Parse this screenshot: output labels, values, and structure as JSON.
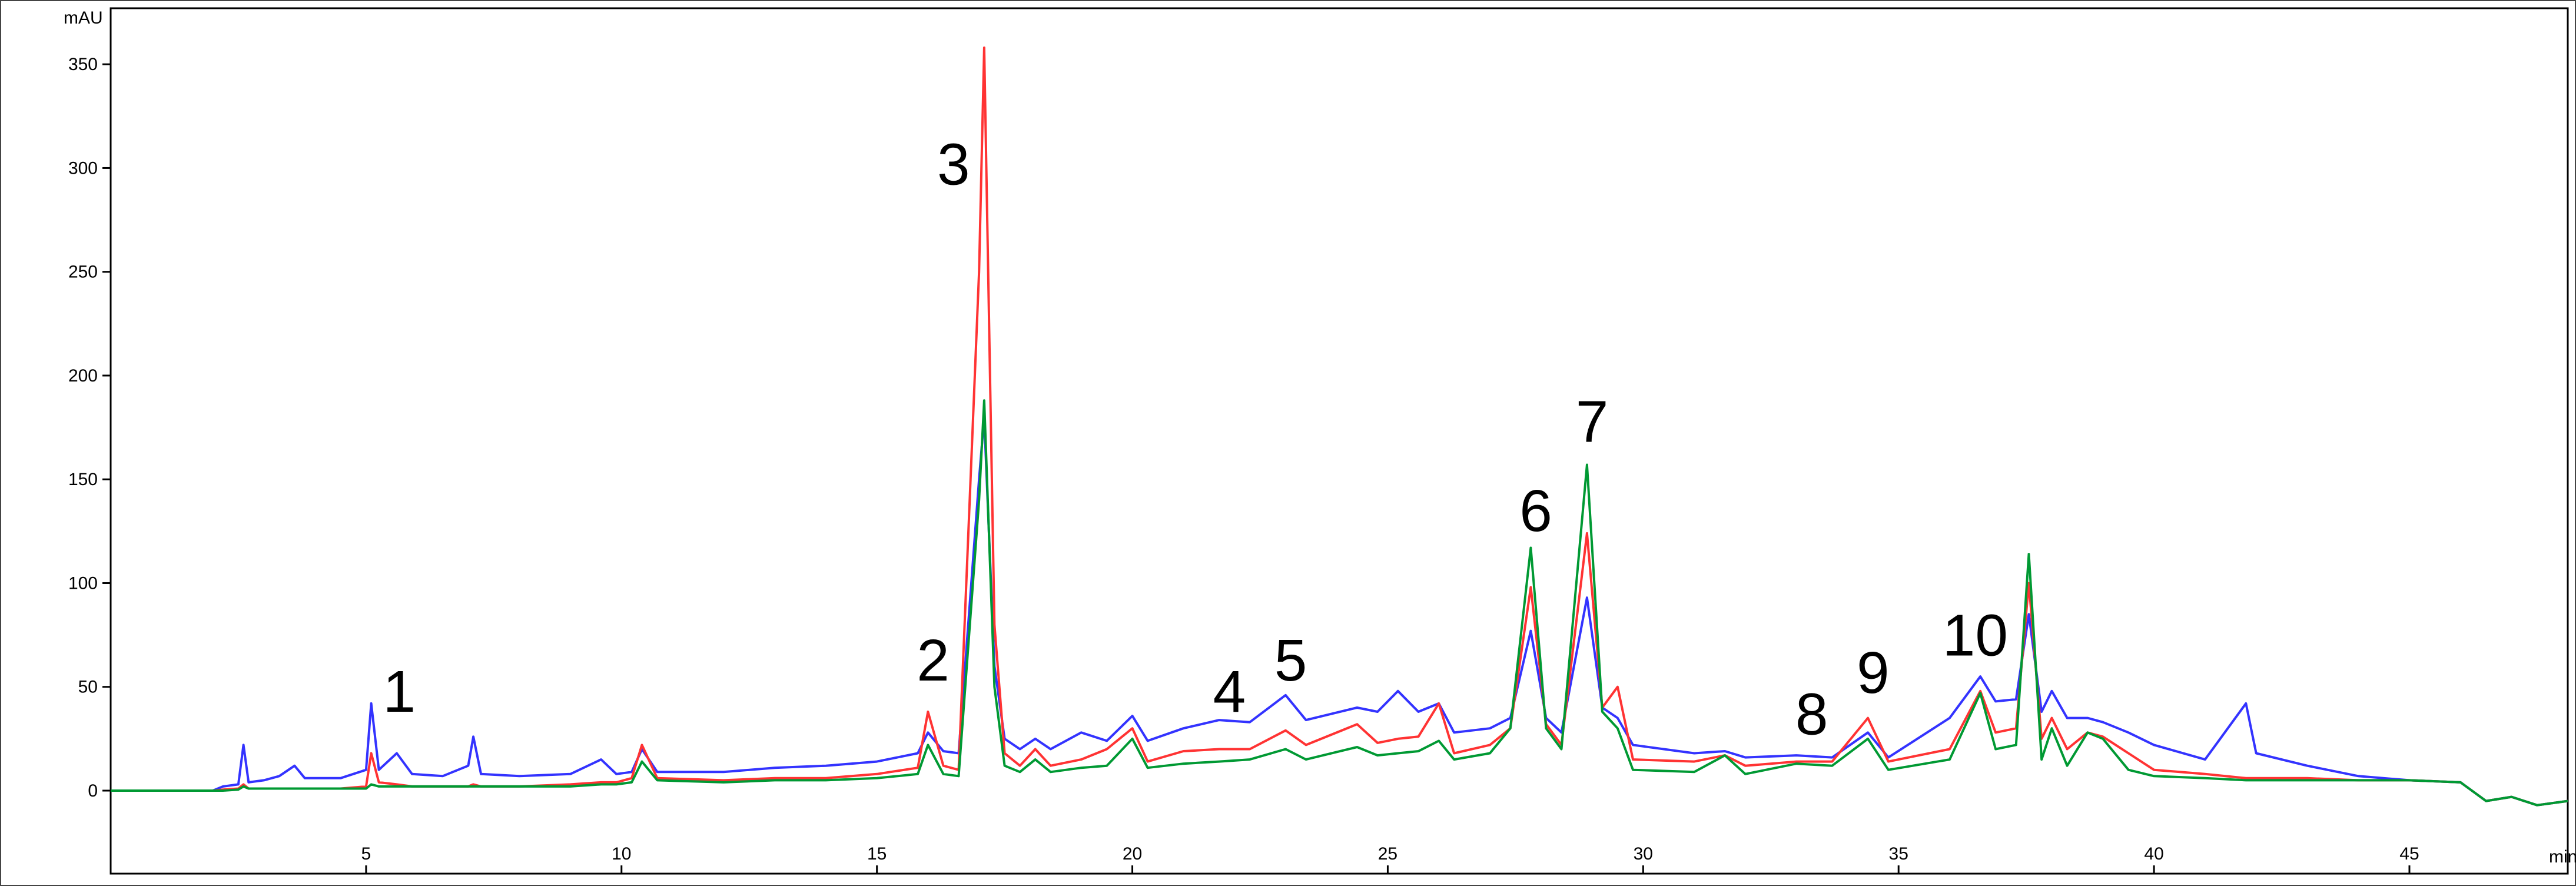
{
  "chart_data": {
    "type": "line",
    "y_label": "mAU",
    "x_label": "min",
    "xlim": [
      0,
      48.1
    ],
    "ylim": [
      -40,
      377
    ],
    "xticks": [
      5,
      10,
      15,
      20,
      25,
      30,
      35,
      40,
      45
    ],
    "yticks": [
      0,
      50,
      100,
      150,
      200,
      250,
      300,
      350
    ],
    "x": [
      0,
      2.0,
      2.2,
      2.5,
      2.6,
      2.7,
      3.0,
      3.3,
      3.6,
      3.8,
      4.5,
      5.0,
      5.1,
      5.25,
      5.6,
      5.9,
      6.5,
      7.0,
      7.1,
      7.25,
      8.0,
      9.0,
      9.6,
      9.9,
      10.2,
      10.4,
      10.7,
      12,
      13,
      14,
      15,
      15.8,
      16.0,
      16.3,
      16.6,
      17.0,
      17.1,
      17.3,
      17.5,
      17.8,
      18.1,
      18.4,
      19.0,
      19.5,
      20.0,
      20.3,
      21.0,
      21.7,
      22.3,
      23.0,
      23.4,
      24.4,
      24.8,
      25.2,
      25.6,
      26.0,
      26.3,
      27.0,
      27.4,
      27.8,
      28.1,
      28.4,
      28.9,
      29.2,
      29.5,
      29.8,
      31.0,
      31.6,
      32.0,
      33.0,
      33.7,
      34.4,
      34.8,
      36.0,
      36.6,
      36.9,
      37.3,
      37.55,
      37.8,
      38.0,
      38.3,
      38.7,
      39.0,
      39.5,
      40.0,
      41.0,
      41.8,
      42.0,
      43.0,
      44.0,
      45.0,
      46.0,
      46.5,
      47.0,
      47.5,
      48.1
    ],
    "series": [
      {
        "color": "#3333ff",
        "values": [
          0,
          0,
          2,
          3,
          22,
          4,
          5,
          7,
          12,
          6,
          6,
          10,
          42,
          10,
          18,
          8,
          7,
          12,
          26,
          8,
          7,
          8,
          15,
          8,
          9,
          20,
          9,
          9,
          11,
          12,
          14,
          18,
          28,
          19,
          18,
          150,
          180,
          60,
          25,
          20,
          25,
          20,
          28,
          24,
          36,
          24,
          30,
          34,
          33,
          46,
          34,
          40,
          38,
          48,
          38,
          42,
          28,
          30,
          35,
          77,
          35,
          28,
          93,
          40,
          35,
          22,
          18,
          19,
          16,
          17,
          16,
          28,
          16,
          35,
          55,
          43,
          44,
          85,
          38,
          48,
          35,
          35,
          33,
          28,
          22,
          15,
          42,
          18,
          12,
          7,
          5,
          4,
          -5,
          -3,
          -7,
          -5
        ]
      },
      {
        "color": "#ff3333",
        "values": [
          0,
          0,
          0.5,
          1,
          3,
          1,
          1,
          1,
          1,
          1,
          1,
          2,
          18,
          4,
          3,
          2,
          2,
          2,
          3,
          2,
          2,
          3,
          4,
          4,
          6,
          22,
          6,
          5,
          6,
          6,
          8,
          11,
          38,
          12,
          10,
          250,
          358,
          80,
          18,
          12,
          20,
          12,
          15,
          20,
          30,
          14,
          19,
          20,
          20,
          29,
          22,
          32,
          23,
          25,
          26,
          42,
          18,
          22,
          30,
          98,
          32,
          22,
          124,
          40,
          50,
          15,
          14,
          17,
          12,
          14,
          14,
          35,
          14,
          20,
          48,
          28,
          30,
          100,
          25,
          35,
          20,
          28,
          26,
          18,
          10,
          8,
          6,
          6,
          6,
          5,
          5,
          4,
          -5,
          -3,
          -7,
          -5
        ]
      },
      {
        "color": "#009933",
        "values": [
          0,
          0,
          0,
          0.5,
          2,
          1,
          1,
          1,
          1,
          1,
          1,
          1,
          3,
          2,
          2,
          2,
          2,
          2,
          2,
          2,
          2,
          2,
          3,
          3,
          4,
          14,
          5,
          4,
          5,
          5,
          6,
          8,
          22,
          8,
          7,
          140,
          188,
          50,
          12,
          9,
          15,
          9,
          11,
          12,
          25,
          11,
          13,
          14,
          15,
          20,
          15,
          21,
          17,
          18,
          19,
          24,
          15,
          18,
          30,
          117,
          30,
          20,
          157,
          38,
          30,
          10,
          9,
          17,
          8,
          13,
          12,
          25,
          10,
          15,
          47,
          20,
          22,
          114,
          15,
          30,
          12,
          28,
          25,
          10,
          7,
          6,
          5,
          5,
          5,
          5,
          5,
          4,
          -5,
          -3,
          -7,
          -5
        ]
      }
    ],
    "annotations": [
      {
        "text": "1",
        "x": 5.65,
        "y": 48
      },
      {
        "text": "2",
        "x": 16.1,
        "y": 63
      },
      {
        "text": "3",
        "x": 16.5,
        "y": 302
      },
      {
        "text": "4",
        "x": 21.9,
        "y": 48
      },
      {
        "text": "5",
        "x": 23.1,
        "y": 63
      },
      {
        "text": "6",
        "x": 27.9,
        "y": 135
      },
      {
        "text": "7",
        "x": 29.0,
        "y": 178
      },
      {
        "text": "8",
        "x": 33.3,
        "y": 37
      },
      {
        "text": "9",
        "x": 34.5,
        "y": 57
      },
      {
        "text": "10",
        "x": 36.5,
        "y": 75
      }
    ]
  }
}
